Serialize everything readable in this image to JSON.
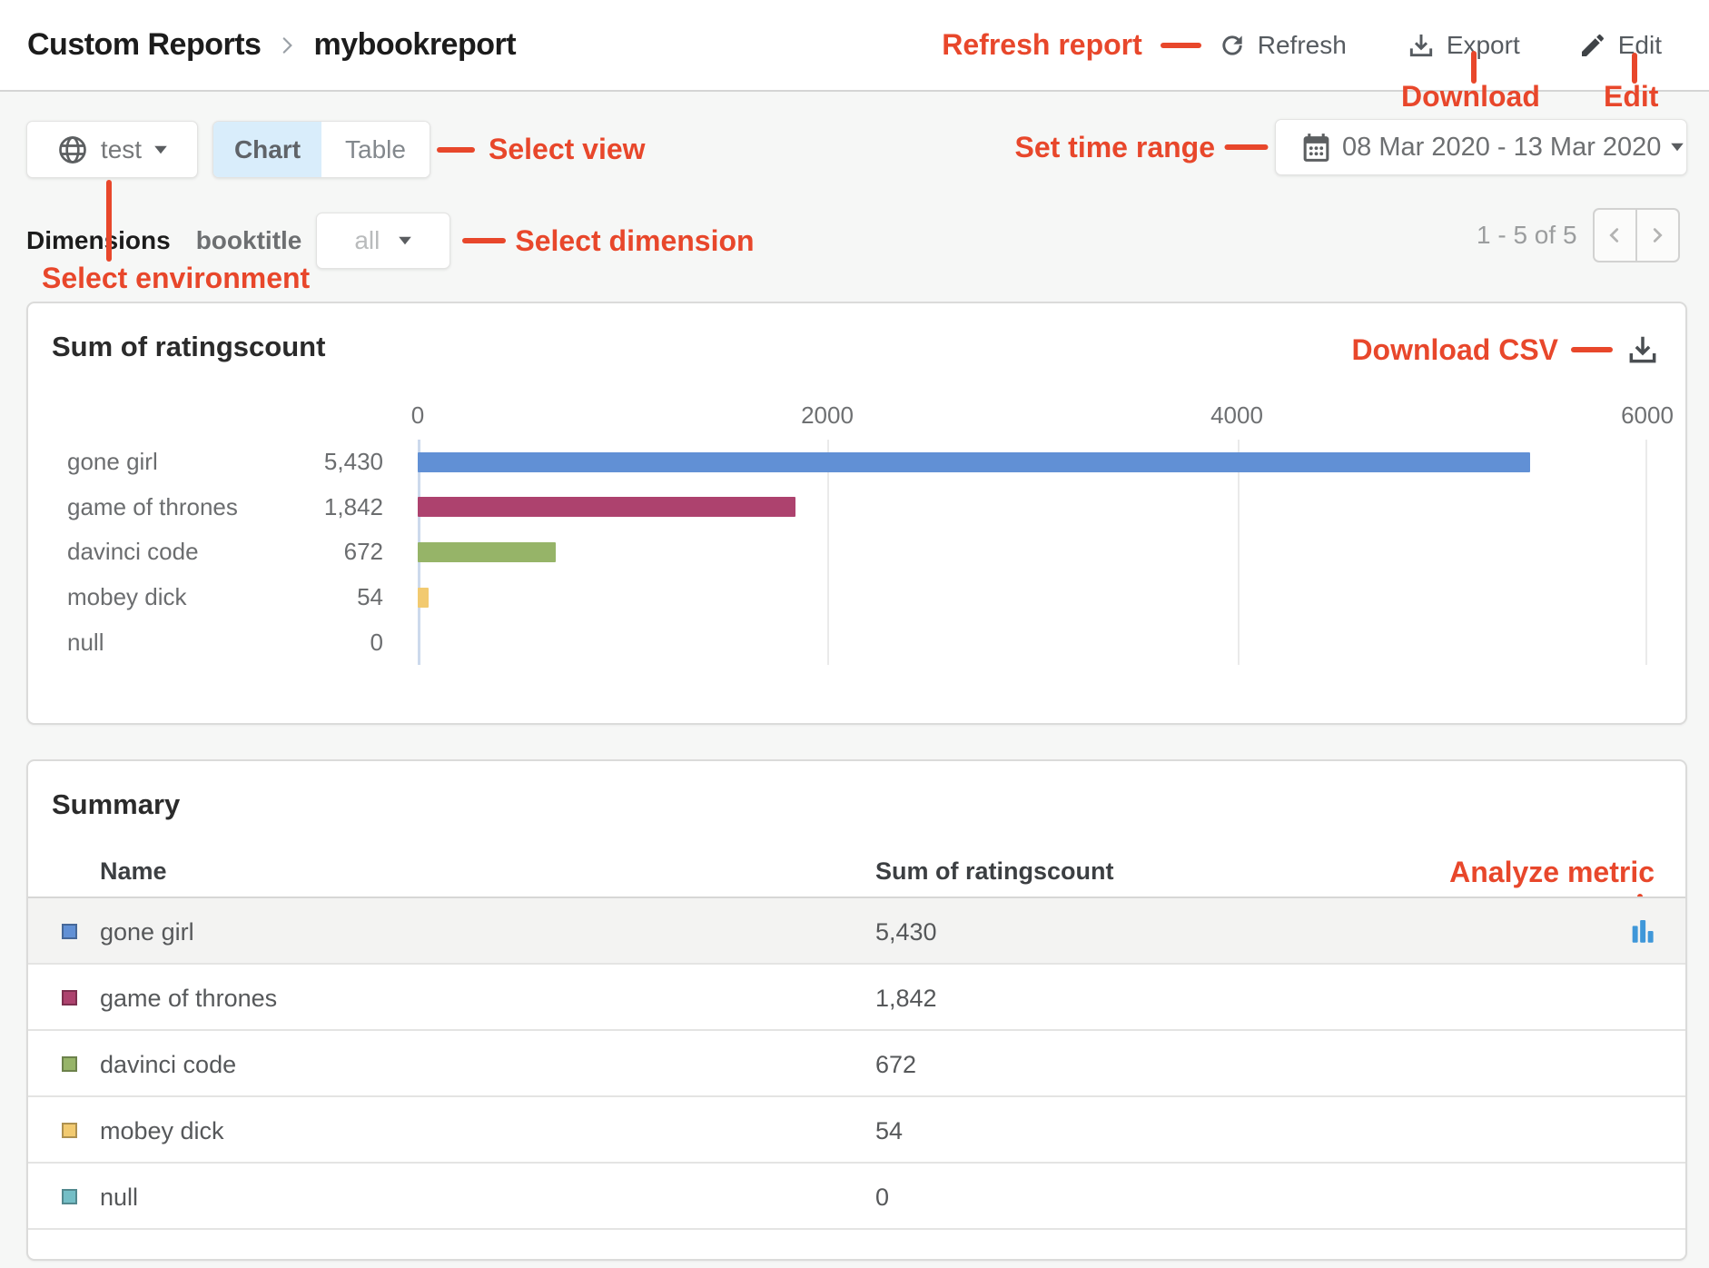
{
  "header": {
    "breadcrumb": {
      "parent": "Custom Reports",
      "current": "mybookreport"
    },
    "buttons": {
      "refresh": "Refresh",
      "export": "Export",
      "edit": "Edit"
    }
  },
  "annotations": {
    "color": "#e8472b",
    "refresh_report": "Refresh report",
    "download": "Download",
    "edit": "Edit",
    "select_view": "Select view",
    "set_time_range": "Set time range",
    "select_dimension": "Select dimension",
    "select_environment": "Select environment",
    "download_csv": "Download CSV",
    "analyze_metric": "Analyze metric"
  },
  "toolbar": {
    "environment": {
      "value": "test",
      "icon": "globe-icon"
    },
    "view_toggle": {
      "options": [
        "Chart",
        "Table"
      ],
      "selected": "Chart"
    },
    "date_range": {
      "value": "08 Mar 2020 - 13 Mar 2020",
      "icon": "calendar-icon"
    }
  },
  "dimensions": {
    "label": "Dimensions",
    "name": "booktitle",
    "filter_value": "all"
  },
  "pagination": {
    "text": "1 - 5 of 5"
  },
  "chart_card": {
    "title": "Sum of ratingscount"
  },
  "chart_data": {
    "type": "bar",
    "orientation": "horizontal",
    "title": "Sum of ratingscount",
    "categories": [
      "gone girl",
      "game of thrones",
      "davinci code",
      "mobey dick",
      "null"
    ],
    "values": [
      5430,
      1842,
      672,
      54,
      0
    ],
    "value_labels": [
      "5,430",
      "1,842",
      "672",
      "54",
      "0"
    ],
    "colors": [
      "#6190d5",
      "#ad426e",
      "#96b468",
      "#f2ca70",
      "#74bec6"
    ],
    "xlim": [
      0,
      6000
    ],
    "x_ticks": [
      0,
      2000,
      4000,
      6000
    ],
    "x_tick_labels": [
      "0",
      "2000",
      "4000",
      "6000"
    ],
    "grid": true,
    "legend_position": "none"
  },
  "summary": {
    "title": "Summary",
    "columns": {
      "name": "Name",
      "value": "Sum of ratingscount"
    },
    "rows": [
      {
        "name": "gone girl",
        "value": "5,430",
        "color": "#6190d5",
        "highlighted": true,
        "has_analyze_icon": true
      },
      {
        "name": "game of thrones",
        "value": "1,842",
        "color": "#ad426e",
        "highlighted": false,
        "has_analyze_icon": false
      },
      {
        "name": "davinci code",
        "value": "672",
        "color": "#96b468",
        "highlighted": false,
        "has_analyze_icon": false
      },
      {
        "name": "mobey dick",
        "value": "54",
        "color": "#f2ca70",
        "highlighted": false,
        "has_analyze_icon": false
      },
      {
        "name": "null",
        "value": "0",
        "color": "#74bec6",
        "highlighted": false,
        "has_analyze_icon": false
      }
    ]
  }
}
